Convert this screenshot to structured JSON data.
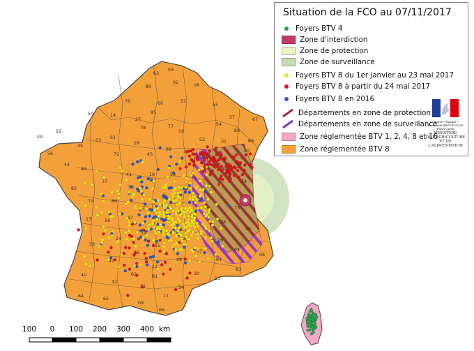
{
  "legend": {
    "title": "Situation de la FCO au 07/11/2017",
    "items": [
      {
        "label": "Foyers BTV 4",
        "kind": "dot",
        "color": "#2e9e4f"
      },
      {
        "label": "Zone d'interdiction",
        "kind": "rect",
        "color": "#c43b6b"
      },
      {
        "label": "Zone de protection",
        "kind": "rect",
        "color": "#e9f5c4"
      },
      {
        "label": "Zone de surveillance",
        "kind": "rect",
        "color": "#c6dcb4"
      },
      {
        "label": "Foyers BTV 8 du 1er janvier au 23 mai 2017",
        "kind": "dot",
        "color": "#f2e21c"
      },
      {
        "label": "Foyers BTV 8 à partir du 24 mai 2017",
        "kind": "dot",
        "color": "#d7191c"
      },
      {
        "label": "Foyers BTV 8 en 2016",
        "kind": "dot",
        "color": "#2b57c6"
      },
      {
        "label": "Départements en zone de protection",
        "kind": "hatch",
        "color": "#a3262a"
      },
      {
        "label": "Départements en zone de surveillance",
        "kind": "hatch",
        "color": "#7b2cc9"
      },
      {
        "label": "Zone réglementée BTV 1, 2, 4, 8 et 16",
        "kind": "rect",
        "color": "#f4a7c7"
      },
      {
        "label": "Zone réglementée BTV 8",
        "kind": "rect",
        "color": "#f4a03a"
      }
    ]
  },
  "logo": {
    "republique": "Liberté • Égalité • Fraternité RÉPUBLIQUE FRANÇAISE",
    "ministry_lines": [
      "MINISTÈRE",
      "DE L'AGRICULTURE",
      "ET DE",
      "L'ALIMENTATION"
    ]
  },
  "scale": {
    "labels": [
      "100",
      "0",
      "100",
      "200",
      "300",
      "400"
    ],
    "unit": "km"
  },
  "map": {
    "colors": {
      "btv8_zone": "#f4a03a",
      "btv_multi_zone": "#f4a7c7",
      "border": "#444444"
    },
    "departments": [
      {
        "label": "62"
      },
      {
        "label": "59"
      },
      {
        "label": "80"
      },
      {
        "label": "02"
      },
      {
        "label": "08"
      },
      {
        "label": "76"
      },
      {
        "label": "60"
      },
      {
        "label": "95"
      },
      {
        "label": "51"
      },
      {
        "label": "55"
      },
      {
        "label": "57"
      },
      {
        "label": "67"
      },
      {
        "label": "54"
      },
      {
        "label": "88"
      },
      {
        "label": "68"
      },
      {
        "label": "50"
      },
      {
        "label": "14"
      },
      {
        "label": "27"
      },
      {
        "label": "78"
      },
      {
        "label": "77"
      },
      {
        "label": "10"
      },
      {
        "label": "52"
      },
      {
        "label": "70"
      },
      {
        "label": "90"
      },
      {
        "label": "29"
      },
      {
        "label": "22"
      },
      {
        "label": "35"
      },
      {
        "label": "53"
      },
      {
        "label": "61"
      },
      {
        "label": "72"
      },
      {
        "label": "28"
      },
      {
        "label": "45"
      },
      {
        "label": "89"
      },
      {
        "label": "21"
      },
      {
        "label": "25"
      },
      {
        "label": "39"
      },
      {
        "label": "56"
      },
      {
        "label": "44"
      },
      {
        "label": "49"
      },
      {
        "label": "37"
      },
      {
        "label": "41"
      },
      {
        "label": "18"
      },
      {
        "label": "58"
      },
      {
        "label": "71"
      },
      {
        "label": "85"
      },
      {
        "label": "79"
      },
      {
        "label": "86"
      },
      {
        "label": "36"
      },
      {
        "label": "03"
      },
      {
        "label": "01"
      },
      {
        "label": "74"
      },
      {
        "label": "17"
      },
      {
        "label": "16"
      },
      {
        "label": "87"
      },
      {
        "label": "23"
      },
      {
        "label": "63"
      },
      {
        "label": "42"
      },
      {
        "label": "69"
      },
      {
        "label": "73"
      },
      {
        "label": "38"
      },
      {
        "label": "33"
      },
      {
        "label": "24"
      },
      {
        "label": "19"
      },
      {
        "label": "15"
      },
      {
        "label": "43"
      },
      {
        "label": "07"
      },
      {
        "label": "26"
      },
      {
        "label": "05"
      },
      {
        "label": "04"
      },
      {
        "label": "06"
      },
      {
        "label": "40"
      },
      {
        "label": "47"
      },
      {
        "label": "46"
      },
      {
        "label": "12"
      },
      {
        "label": "48"
      },
      {
        "label": "30"
      },
      {
        "label": "84"
      },
      {
        "label": "83"
      },
      {
        "label": "64"
      },
      {
        "label": "65"
      },
      {
        "label": "32"
      },
      {
        "label": "31"
      },
      {
        "label": "81"
      },
      {
        "label": "34"
      },
      {
        "label": "13"
      },
      {
        "label": "11"
      },
      {
        "label": "09"
      },
      {
        "label": "66"
      },
      {
        "label": "82"
      }
    ]
  }
}
